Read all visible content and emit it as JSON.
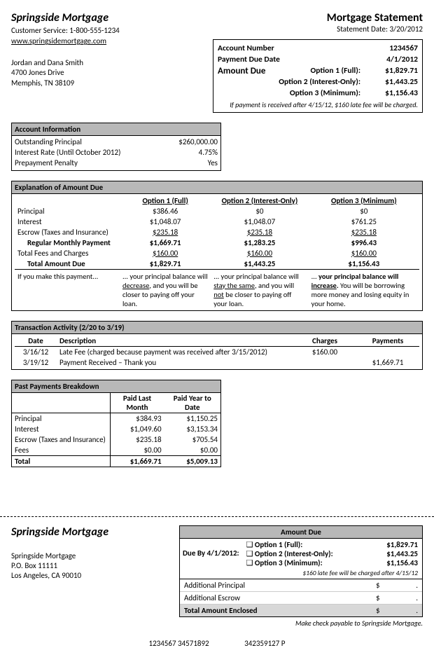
{
  "header": {
    "company": "Springside Mortgage",
    "customer_service": "Customer Service: 1-800-555-1234",
    "website": "www.springsidemortgage.com",
    "title": "Mortgage Statement",
    "statement_date": "Statement Date: 3/20/2012"
  },
  "customer": {
    "name": "Jordan and Dana Smith",
    "addr1": "4700 Jones Drive",
    "addr2": "Memphis, TN 38109"
  },
  "summary": {
    "acct_label": "Account Number",
    "acct_val": "1234567",
    "due_label": "Payment Due Date",
    "due_val": "4/1/2012",
    "amount_due_label": "Amount Due",
    "opt1l": "Option 1 (Full):",
    "opt1v": "$1,829.71",
    "opt2l": "Option 2 (Interest-Only):",
    "opt2v": "$1,443.25",
    "opt3l": "Option 3 (Minimum):",
    "opt3v": "$1,156.43",
    "late": "If payment is received after 4/15/12, $160 late fee will be charged."
  },
  "account_info": {
    "title": "Account Information",
    "r1l": "Outstanding Principal",
    "r1v": "$260,000.00",
    "r2l": "Interest Rate (Until October 2012)",
    "r2v": "4.75%",
    "r3l": "Prepayment Penalty",
    "r3v": "Yes"
  },
  "explanation": {
    "title": "Explanation of Amount Due",
    "h1": "Option 1 (Full)",
    "h2": "Option 2 (Interest-Only)",
    "h3": "Option 3 (Minimum)",
    "rows": [
      {
        "l": "Principal",
        "a": "$386.46",
        "b": "$0",
        "c": "$0"
      },
      {
        "l": "Interest",
        "a": "$1,048.07",
        "b": "$1,048.07",
        "c": "$761.25"
      },
      {
        "l": "Escrow (Taxes and Insurance)",
        "a": "$235.18",
        "b": "$235.18",
        "c": "$235.18",
        "u": true
      },
      {
        "l": "Regular Monthly Payment",
        "a": "$1,669.71",
        "b": "$1,283.25",
        "c": "$996.43",
        "bold": true,
        "indent": true
      },
      {
        "l": "Total Fees and Charges",
        "a": "$160.00",
        "b": "$160.00",
        "c": "$160.00",
        "u": true
      },
      {
        "l": "Total Amount Due",
        "a": "$1,829.71",
        "b": "$1,443.25",
        "c": "$1,156.43",
        "bold": true,
        "indent": true
      }
    ],
    "note_l": "If you make this payment...",
    "note_a": "... your principal balance will <u>decrease</u>, and you will be closer to paying off your loan.",
    "note_b": "... your principal balance will <u>stay the same</u>, and you will <u>not</u> be closer to paying off your loan.",
    "note_c": "... <b>your principal balance will <u>increase</u>.</b> You will be borrowing more money and losing equity in your home."
  },
  "transactions": {
    "title": "Transaction Activity (2/20 to 3/19)",
    "cols": {
      "date": "Date",
      "desc": "Description",
      "charges": "Charges",
      "payments": "Payments"
    },
    "rows": [
      {
        "date": "3/16/12",
        "desc": "Late Fee (charged because payment was received after 3/15/2012)",
        "charges": "$160.00",
        "payments": ""
      },
      {
        "date": "3/19/12",
        "desc": "Payment Received – Thank you",
        "charges": "",
        "payments": "$1,669.71"
      }
    ]
  },
  "past": {
    "title": "Past Payments Breakdown",
    "h1": "Paid Last Month",
    "h2": "Paid Year to Date",
    "rows": [
      {
        "l": "Principal",
        "a": "$384.93",
        "b": "$1,150.25"
      },
      {
        "l": "Interest",
        "a": "$1,049.60",
        "b": "$3,153.34"
      },
      {
        "l": "Escrow (Taxes and Insurance)",
        "a": "$235.18",
        "b": "$705.54"
      },
      {
        "l": "Fees",
        "a": "$0.00",
        "b": "$0.00"
      }
    ],
    "total": {
      "l": "Total",
      "a": "$1,669.71",
      "b": "$5,009.13"
    }
  },
  "stub": {
    "company": "Springside Mortgage",
    "addr_name": "Springside Mortgage",
    "addr1": "P.O. Box 11111",
    "addr2": "Los Angeles, CA 90010",
    "title": "Amount Due",
    "dueby": "Due By 4/1/2012:",
    "opt1l": "Option 1 (Full):",
    "opt1v": "$1,829.71",
    "opt2l": "Option 2 (Interest-Only):",
    "opt2v": "$1,443.25",
    "opt3l": "Option 3 (Minimum):",
    "opt3v": "$1,156.43",
    "note": "$160 late fee will be charged after 4/15/12",
    "addl1": "Additional Principal",
    "addl2": "Additional Escrow",
    "total": "Total Amount Enclosed",
    "dollar": "$",
    "dot": ".",
    "payable": "Make check payable to Springside Mortgage.",
    "code1": "1234567 34571892",
    "code2": "342359127 P"
  }
}
